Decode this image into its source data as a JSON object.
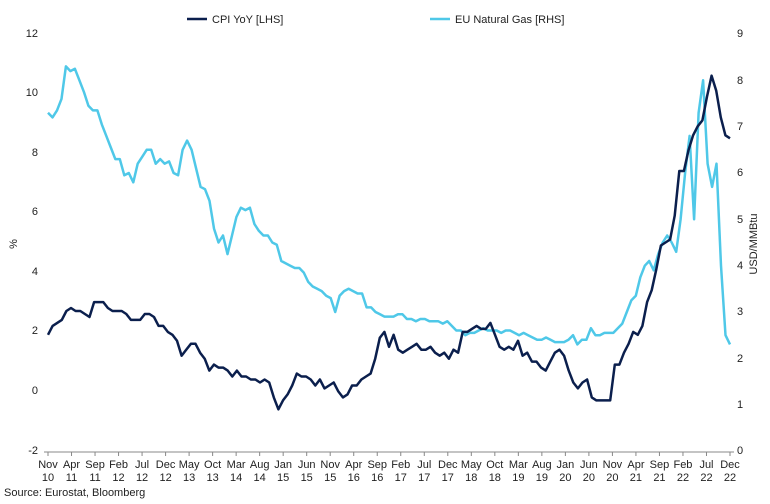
{
  "chart_data": {
    "type": "line",
    "title": "",
    "source": "Source: Eurostat, Bloomberg",
    "colors": {
      "cpi": "#0b1f4d",
      "gas": "#4fc8e8"
    },
    "left_axis": {
      "label": "%",
      "ticks": [
        "-2",
        "0",
        "2",
        "4",
        "6",
        "8",
        "10",
        "12"
      ],
      "min": -2,
      "max": 12
    },
    "right_axis": {
      "label": "USD/MMBtu",
      "ticks": [
        "0",
        "1",
        "2",
        "3",
        "4",
        "5",
        "6",
        "7",
        "8",
        "9"
      ],
      "min": 0,
      "max": 9
    },
    "x_ticks": [
      [
        "Nov",
        "10"
      ],
      [
        "Apr",
        "11"
      ],
      [
        "Sep",
        "11"
      ],
      [
        "Feb",
        "12"
      ],
      [
        "Jul",
        "12"
      ],
      [
        "Dec",
        "12"
      ],
      [
        "May",
        "13"
      ],
      [
        "Oct",
        "13"
      ],
      [
        "Mar",
        "14"
      ],
      [
        "Aug",
        "14"
      ],
      [
        "Jan",
        "15"
      ],
      [
        "Jun",
        "15"
      ],
      [
        "Nov",
        "15"
      ],
      [
        "Apr",
        "16"
      ],
      [
        "Sep",
        "16"
      ],
      [
        "Feb",
        "17"
      ],
      [
        "Jul",
        "17"
      ],
      [
        "Dec",
        "17"
      ],
      [
        "May",
        "18"
      ],
      [
        "Oct",
        "18"
      ],
      [
        "Mar",
        "19"
      ],
      [
        "Aug",
        "19"
      ],
      [
        "Jan",
        "20"
      ],
      [
        "Jun",
        "20"
      ],
      [
        "Nov",
        "20"
      ],
      [
        "Apr",
        "21"
      ],
      [
        "Sep",
        "21"
      ],
      [
        "Feb",
        "22"
      ],
      [
        "Jul",
        "22"
      ],
      [
        "Dec",
        "22"
      ]
    ],
    "series": [
      {
        "name": "CPI YoY [LHS]",
        "axis": "left",
        "values": [
          1.9,
          2.2,
          2.3,
          2.4,
          2.7,
          2.8,
          2.7,
          2.7,
          2.6,
          2.5,
          3.0,
          3.0,
          3.0,
          2.8,
          2.7,
          2.7,
          2.7,
          2.6,
          2.4,
          2.4,
          2.4,
          2.6,
          2.6,
          2.5,
          2.2,
          2.2,
          2.0,
          1.9,
          1.7,
          1.2,
          1.4,
          1.6,
          1.6,
          1.3,
          1.1,
          0.7,
          0.9,
          0.8,
          0.8,
          0.7,
          0.5,
          0.7,
          0.5,
          0.5,
          0.4,
          0.4,
          0.3,
          0.4,
          0.3,
          -0.2,
          -0.6,
          -0.3,
          -0.1,
          0.2,
          0.6,
          0.5,
          0.5,
          0.4,
          0.2,
          0.4,
          0.1,
          0.2,
          0.3,
          0.0,
          -0.2,
          -0.1,
          0.2,
          0.2,
          0.4,
          0.5,
          0.6,
          1.1,
          1.8,
          2.0,
          1.5,
          1.9,
          1.4,
          1.3,
          1.4,
          1.5,
          1.6,
          1.4,
          1.4,
          1.5,
          1.3,
          1.2,
          1.3,
          1.1,
          1.4,
          1.3,
          2.0,
          2.0,
          2.1,
          2.2,
          2.1,
          2.1,
          2.3,
          1.9,
          1.5,
          1.4,
          1.5,
          1.4,
          1.7,
          1.2,
          1.3,
          1.0,
          1.0,
          0.8,
          0.7,
          1.0,
          1.3,
          1.4,
          1.2,
          0.7,
          0.3,
          0.1,
          0.3,
          0.4,
          -0.2,
          -0.3,
          -0.3,
          -0.3,
          -0.3,
          0.9,
          0.9,
          1.3,
          1.6,
          2.0,
          1.9,
          2.2,
          3.0,
          3.4,
          4.1,
          4.9,
          5.0,
          5.1,
          5.9,
          7.4,
          7.4,
          8.1,
          8.6,
          8.9,
          9.1,
          9.9,
          10.6,
          10.1,
          9.2,
          8.6,
          8.5
        ]
      },
      {
        "name": "EU Natural Gas [RHS]",
        "axis": "right",
        "values": [
          7.3,
          7.2,
          7.35,
          7.6,
          8.3,
          8.2,
          8.25,
          8.0,
          7.75,
          7.45,
          7.35,
          7.35,
          7.05,
          6.8,
          6.55,
          6.3,
          6.3,
          5.95,
          6.0,
          5.8,
          6.2,
          6.35,
          6.5,
          6.5,
          6.2,
          6.3,
          6.2,
          6.25,
          6.0,
          5.95,
          6.5,
          6.7,
          6.5,
          6.1,
          5.7,
          5.65,
          5.4,
          4.8,
          4.5,
          4.65,
          4.25,
          4.65,
          5.05,
          5.25,
          5.2,
          5.25,
          4.9,
          4.75,
          4.65,
          4.65,
          4.5,
          4.45,
          4.1,
          4.05,
          4.0,
          3.95,
          3.95,
          3.85,
          3.65,
          3.55,
          3.5,
          3.45,
          3.35,
          3.3,
          3.0,
          3.35,
          3.45,
          3.5,
          3.45,
          3.4,
          3.4,
          3.1,
          3.1,
          3.0,
          2.95,
          2.9,
          2.9,
          2.9,
          2.95,
          2.95,
          2.85,
          2.85,
          2.8,
          2.85,
          2.85,
          2.8,
          2.8,
          2.8,
          2.75,
          2.8,
          2.7,
          2.6,
          2.6,
          2.5,
          2.55,
          2.55,
          2.6,
          2.65,
          2.6,
          2.6,
          2.6,
          2.55,
          2.6,
          2.6,
          2.55,
          2.5,
          2.55,
          2.5,
          2.45,
          2.4,
          2.4,
          2.45,
          2.4,
          2.35,
          2.35,
          2.35,
          2.4,
          2.5,
          2.3,
          2.4,
          2.4,
          2.65,
          2.5,
          2.5,
          2.55,
          2.55,
          2.55,
          2.65,
          2.75,
          3.0,
          3.25,
          3.35,
          3.75,
          4.0,
          4.1,
          3.9,
          4.25,
          4.5,
          4.65,
          4.5,
          4.3,
          5.0,
          6.0,
          6.8,
          5.0,
          7.3,
          8.0,
          6.2,
          5.7,
          6.2,
          4.0,
          2.5,
          2.3
        ]
      }
    ]
  }
}
